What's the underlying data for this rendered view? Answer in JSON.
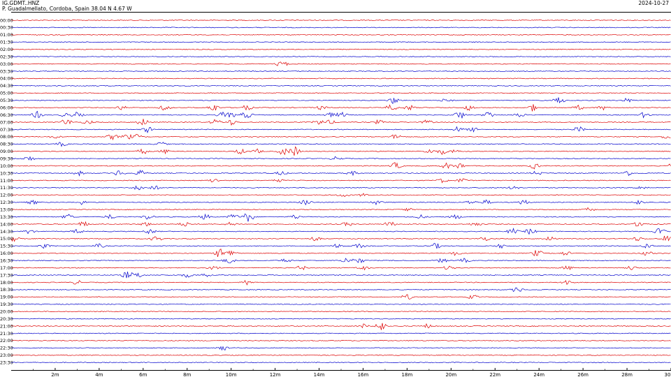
{
  "header": {
    "station": "IG.GDMT..HNZ",
    "location": "P. Guadalmellato, Cordoba, Spain  38.04 N 4.67 W",
    "date": "2024-10-27"
  },
  "chart_data": {
    "type": "line",
    "subtype": "helicorder",
    "row_labels": [
      "00:00",
      "00:30",
      "01:00",
      "01:30",
      "02:00",
      "02:30",
      "03:00",
      "03:30",
      "04:00",
      "04:30",
      "05:00",
      "05:30",
      "06:00",
      "06:30",
      "07:00",
      "07:30",
      "08:00",
      "08:30",
      "09:00",
      "09:30",
      "10:00",
      "10:30",
      "11:00",
      "11:30",
      "12:00",
      "12:30",
      "13:00",
      "13:30",
      "14:00",
      "14:30",
      "15:00",
      "15:30",
      "16:00",
      "16:30",
      "17:00",
      "17:30",
      "18:00",
      "18:30",
      "19:00",
      "19:30",
      "20:00",
      "20:30",
      "21:00",
      "21:30",
      "22:00",
      "22:30",
      "23:00",
      "23:30"
    ],
    "x_tick_labels": [
      "2m",
      "4m",
      "6m",
      "8m",
      "10m",
      "12m",
      "14m",
      "16m",
      "18m",
      "20m",
      "22m",
      "24m",
      "26m",
      "28m",
      "30"
    ],
    "xlim": [
      0,
      30
    ],
    "x_unit": "minutes",
    "grid": false,
    "colors": {
      "even_rows": "#dd0000",
      "odd_rows": "#0000cc",
      "axis": "#000000"
    },
    "bursts": [
      {
        "row": 6,
        "minute": 12.3,
        "amp": 5
      },
      {
        "row": 11,
        "minute": 17.4,
        "amp": 5
      },
      {
        "row": 11,
        "minute": 19.8,
        "amp": 3
      },
      {
        "row": 11,
        "minute": 24.9,
        "amp": 5
      },
      {
        "row": 11,
        "minute": 28.0,
        "amp": 3
      },
      {
        "row": 12,
        "minute": 5.0,
        "amp": 3
      },
      {
        "row": 12,
        "minute": 7.0,
        "amp": 4
      },
      {
        "row": 12,
        "minute": 9.2,
        "amp": 6
      },
      {
        "row": 12,
        "minute": 10.7,
        "amp": 4
      },
      {
        "row": 12,
        "minute": 14.1,
        "amp": 3
      },
      {
        "row": 12,
        "minute": 17.3,
        "amp": 5
      },
      {
        "row": 12,
        "minute": 18.1,
        "amp": 4
      },
      {
        "row": 12,
        "minute": 20.8,
        "amp": 4
      },
      {
        "row": 12,
        "minute": 23.7,
        "amp": 5
      },
      {
        "row": 12,
        "minute": 25.8,
        "amp": 3
      },
      {
        "row": 12,
        "minute": 26.9,
        "amp": 3
      },
      {
        "row": 13,
        "minute": 1.2,
        "amp": 5
      },
      {
        "row": 13,
        "minute": 2.5,
        "amp": 3
      },
      {
        "row": 13,
        "minute": 3.0,
        "amp": 4
      },
      {
        "row": 13,
        "minute": 9.6,
        "amp": 4
      },
      {
        "row": 13,
        "minute": 10.0,
        "amp": 4
      },
      {
        "row": 13,
        "minute": 10.7,
        "amp": 5
      },
      {
        "row": 13,
        "minute": 14.5,
        "amp": 3
      },
      {
        "row": 13,
        "minute": 15.0,
        "amp": 4
      },
      {
        "row": 13,
        "minute": 20.4,
        "amp": 6
      },
      {
        "row": 13,
        "minute": 21.7,
        "amp": 5
      },
      {
        "row": 13,
        "minute": 23.1,
        "amp": 3
      },
      {
        "row": 13,
        "minute": 28.8,
        "amp": 4
      },
      {
        "row": 14,
        "minute": 2.5,
        "amp": 5
      },
      {
        "row": 14,
        "minute": 3.5,
        "amp": 3
      },
      {
        "row": 14,
        "minute": 6.0,
        "amp": 5
      },
      {
        "row": 14,
        "minute": 9.3,
        "amp": 4
      },
      {
        "row": 14,
        "minute": 10.0,
        "amp": 4
      },
      {
        "row": 14,
        "minute": 14.0,
        "amp": 4
      },
      {
        "row": 14,
        "minute": 14.5,
        "amp": 3
      },
      {
        "row": 14,
        "minute": 16.7,
        "amp": 3
      },
      {
        "row": 14,
        "minute": 18.9,
        "amp": 3
      },
      {
        "row": 15,
        "minute": 6.2,
        "amp": 4
      },
      {
        "row": 15,
        "minute": 20.3,
        "amp": 4
      },
      {
        "row": 15,
        "minute": 21.0,
        "amp": 3
      },
      {
        "row": 15,
        "minute": 25.8,
        "amp": 4
      },
      {
        "row": 16,
        "minute": 2.0,
        "amp": 2
      },
      {
        "row": 16,
        "minute": 4.6,
        "amp": 4
      },
      {
        "row": 16,
        "minute": 5.3,
        "amp": 4
      },
      {
        "row": 16,
        "minute": 5.7,
        "amp": 3
      },
      {
        "row": 16,
        "minute": 17.5,
        "amp": 4
      },
      {
        "row": 16,
        "minute": 29.8,
        "amp": 3
      },
      {
        "row": 17,
        "minute": 2.3,
        "amp": 3
      },
      {
        "row": 17,
        "minute": 6.8,
        "amp": 3
      },
      {
        "row": 18,
        "minute": 6.0,
        "amp": 4
      },
      {
        "row": 18,
        "minute": 7.0,
        "amp": 3
      },
      {
        "row": 18,
        "minute": 10.4,
        "amp": 4
      },
      {
        "row": 18,
        "minute": 11.2,
        "amp": 3
      },
      {
        "row": 18,
        "minute": 12.4,
        "amp": 6
      },
      {
        "row": 18,
        "minute": 12.9,
        "amp": 7
      },
      {
        "row": 18,
        "minute": 19.0,
        "amp": 3
      },
      {
        "row": 18,
        "minute": 19.6,
        "amp": 4
      },
      {
        "row": 18,
        "minute": 20.2,
        "amp": 3
      },
      {
        "row": 19,
        "minute": 0.8,
        "amp": 4
      },
      {
        "row": 19,
        "minute": 14.8,
        "amp": 3
      },
      {
        "row": 20,
        "minute": 17.5,
        "amp": 5
      },
      {
        "row": 20,
        "minute": 19.8,
        "amp": 4
      },
      {
        "row": 20,
        "minute": 20.4,
        "amp": 4
      },
      {
        "row": 20,
        "minute": 23.8,
        "amp": 4
      },
      {
        "row": 20,
        "minute": 30.0,
        "amp": 3
      },
      {
        "row": 21,
        "minute": 3.1,
        "amp": 3
      },
      {
        "row": 21,
        "minute": 4.9,
        "amp": 4
      },
      {
        "row": 21,
        "minute": 5.9,
        "amp": 4
      },
      {
        "row": 21,
        "minute": 12.3,
        "amp": 3
      },
      {
        "row": 21,
        "minute": 15.5,
        "amp": 3
      },
      {
        "row": 21,
        "minute": 23.9,
        "amp": 3
      },
      {
        "row": 21,
        "minute": 28.0,
        "amp": 4
      },
      {
        "row": 22,
        "minute": 9.2,
        "amp": 3
      },
      {
        "row": 22,
        "minute": 12.1,
        "amp": 3
      },
      {
        "row": 22,
        "minute": 19.6,
        "amp": 3
      },
      {
        "row": 22,
        "minute": 20.5,
        "amp": 3
      },
      {
        "row": 23,
        "minute": 5.8,
        "amp": 4
      },
      {
        "row": 23,
        "minute": 6.5,
        "amp": 3
      },
      {
        "row": 23,
        "minute": 22.9,
        "amp": 3
      },
      {
        "row": 23,
        "minute": 28.7,
        "amp": 3
      },
      {
        "row": 24,
        "minute": 15.1,
        "amp": 3
      },
      {
        "row": 24,
        "minute": 16.0,
        "amp": 2
      },
      {
        "row": 25,
        "minute": 1.0,
        "amp": 3
      },
      {
        "row": 25,
        "minute": 3.2,
        "amp": 3
      },
      {
        "row": 25,
        "minute": 13.4,
        "amp": 4
      },
      {
        "row": 25,
        "minute": 16.6,
        "amp": 3
      },
      {
        "row": 25,
        "minute": 20.9,
        "amp": 3
      },
      {
        "row": 25,
        "minute": 21.6,
        "amp": 3
      },
      {
        "row": 25,
        "minute": 23.3,
        "amp": 4
      },
      {
        "row": 25,
        "minute": 28.5,
        "amp": 3
      },
      {
        "row": 26,
        "minute": 18.0,
        "amp": 2
      },
      {
        "row": 26,
        "minute": 26.3,
        "amp": 3
      },
      {
        "row": 27,
        "minute": 2.6,
        "amp": 4
      },
      {
        "row": 27,
        "minute": 4.5,
        "amp": 3
      },
      {
        "row": 27,
        "minute": 6.2,
        "amp": 4
      },
      {
        "row": 27,
        "minute": 8.8,
        "amp": 4
      },
      {
        "row": 27,
        "minute": 10.1,
        "amp": 4
      },
      {
        "row": 27,
        "minute": 10.8,
        "amp": 8
      },
      {
        "row": 27,
        "minute": 12.9,
        "amp": 3
      },
      {
        "row": 27,
        "minute": 18.6,
        "amp": 3
      },
      {
        "row": 27,
        "minute": 20.2,
        "amp": 3
      },
      {
        "row": 28,
        "minute": 3.3,
        "amp": 4
      },
      {
        "row": 28,
        "minute": 6.1,
        "amp": 3
      },
      {
        "row": 28,
        "minute": 7.9,
        "amp": 3
      },
      {
        "row": 28,
        "minute": 10.0,
        "amp": 3
      },
      {
        "row": 28,
        "minute": 15.3,
        "amp": 3
      },
      {
        "row": 28,
        "minute": 17.2,
        "amp": 4
      },
      {
        "row": 28,
        "minute": 21.1,
        "amp": 3
      },
      {
        "row": 28,
        "minute": 28.6,
        "amp": 5
      },
      {
        "row": 29,
        "minute": 0.8,
        "amp": 3
      },
      {
        "row": 29,
        "minute": 3.0,
        "amp": 3
      },
      {
        "row": 29,
        "minute": 6.3,
        "amp": 4
      },
      {
        "row": 29,
        "minute": 22.8,
        "amp": 4
      },
      {
        "row": 29,
        "minute": 23.6,
        "amp": 4
      },
      {
        "row": 29,
        "minute": 29.5,
        "amp": 5
      },
      {
        "row": 30,
        "minute": 0.1,
        "amp": 4
      },
      {
        "row": 30,
        "minute": 6.6,
        "amp": 4
      },
      {
        "row": 30,
        "minute": 13.8,
        "amp": 3
      },
      {
        "row": 30,
        "minute": 21.5,
        "amp": 3
      },
      {
        "row": 30,
        "minute": 24.5,
        "amp": 3
      },
      {
        "row": 30,
        "minute": 28.5,
        "amp": 3
      },
      {
        "row": 30,
        "minute": 29.8,
        "amp": 5
      },
      {
        "row": 31,
        "minute": 1.5,
        "amp": 3
      },
      {
        "row": 31,
        "minute": 4.0,
        "amp": 3
      },
      {
        "row": 31,
        "minute": 14.8,
        "amp": 3
      },
      {
        "row": 31,
        "minute": 15.8,
        "amp": 3
      },
      {
        "row": 31,
        "minute": 19.3,
        "amp": 4
      },
      {
        "row": 31,
        "minute": 22.3,
        "amp": 3
      },
      {
        "row": 31,
        "minute": 28.9,
        "amp": 3
      },
      {
        "row": 32,
        "minute": 9.5,
        "amp": 7
      },
      {
        "row": 32,
        "minute": 10.0,
        "amp": 5
      },
      {
        "row": 32,
        "minute": 20.2,
        "amp": 3
      },
      {
        "row": 32,
        "minute": 23.9,
        "amp": 5
      },
      {
        "row": 32,
        "minute": 25.2,
        "amp": 3
      },
      {
        "row": 32,
        "minute": 28.9,
        "amp": 3
      },
      {
        "row": 33,
        "minute": 9.9,
        "amp": 4
      },
      {
        "row": 33,
        "minute": 12.5,
        "amp": 3
      },
      {
        "row": 33,
        "minute": 15.3,
        "amp": 5
      },
      {
        "row": 33,
        "minute": 15.8,
        "amp": 4
      },
      {
        "row": 33,
        "minute": 19.6,
        "amp": 3
      },
      {
        "row": 33,
        "minute": 20.6,
        "amp": 3
      },
      {
        "row": 34,
        "minute": 9.2,
        "amp": 3
      },
      {
        "row": 34,
        "minute": 13.2,
        "amp": 3
      },
      {
        "row": 34,
        "minute": 16.0,
        "amp": 3
      },
      {
        "row": 34,
        "minute": 19.9,
        "amp": 3
      },
      {
        "row": 34,
        "minute": 25.3,
        "amp": 3
      },
      {
        "row": 34,
        "minute": 28.2,
        "amp": 3
      },
      {
        "row": 35,
        "minute": 5.3,
        "amp": 6
      },
      {
        "row": 35,
        "minute": 5.8,
        "amp": 4
      },
      {
        "row": 35,
        "minute": 8.0,
        "amp": 3
      },
      {
        "row": 35,
        "minute": 8.8,
        "amp": 3
      },
      {
        "row": 36,
        "minute": 3.0,
        "amp": 3
      },
      {
        "row": 36,
        "minute": 10.7,
        "amp": 4
      },
      {
        "row": 36,
        "minute": 25.3,
        "amp": 4
      },
      {
        "row": 37,
        "minute": 23.0,
        "amp": 4
      },
      {
        "row": 38,
        "minute": 18.0,
        "amp": 4
      },
      {
        "row": 38,
        "minute": 21.0,
        "amp": 3
      },
      {
        "row": 42,
        "minute": 16.0,
        "amp": 3
      },
      {
        "row": 42,
        "minute": 16.8,
        "amp": 7
      },
      {
        "row": 42,
        "minute": 18.9,
        "amp": 3
      },
      {
        "row": 45,
        "minute": 9.6,
        "amp": 4
      }
    ]
  }
}
